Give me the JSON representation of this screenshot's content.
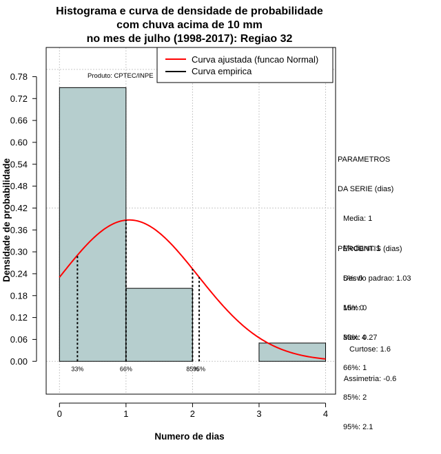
{
  "chart_data": {
    "type": "histogram",
    "title_lines": [
      "Histograma e curva de densidade de probabilidade",
      "com chuva acima de 10 mm",
      "no mes de julho (1998-2017): Regiao 32"
    ],
    "xlabel": "Numero de dias",
    "ylabel": "Densidade de probabilidade",
    "xlim": [
      -0.2,
      4.15
    ],
    "ylim": [
      -0.09,
      0.86
    ],
    "x_ticks": [
      0,
      1,
      2,
      3,
      4
    ],
    "y_ticks": [
      0.0,
      0.06,
      0.12,
      0.18,
      0.24,
      0.3,
      0.36,
      0.42,
      0.48,
      0.54,
      0.6,
      0.66,
      0.72,
      0.78
    ],
    "y_tick_labels": [
      "0.00",
      "0.06",
      "0.12",
      "0.18",
      "0.24",
      "0.30",
      "0.36",
      "0.42",
      "0.48",
      "0.54",
      "0.60",
      "0.66",
      "0.72",
      "0.78"
    ],
    "grid": true,
    "bars": [
      {
        "x0": 0,
        "x1": 1,
        "density": 0.75
      },
      {
        "x0": 1,
        "x1": 2,
        "density": 0.2
      },
      {
        "x0": 2,
        "x1": 3,
        "density": 0.0
      },
      {
        "x0": 3,
        "x1": 4,
        "density": 0.05
      }
    ],
    "bar_color": "#b6cece",
    "normal_curve": {
      "mean": 1.05,
      "sd": 1.03,
      "x_from": 0,
      "x_to": 4,
      "color": "#ff0000"
    },
    "percentile_lines": [
      {
        "label": "33%",
        "x": 0.27
      },
      {
        "label": "66%",
        "x": 1
      },
      {
        "label": "85%",
        "x": 2
      },
      {
        "label": "95%",
        "x": 2.1
      }
    ],
    "legend": {
      "position": "top-right",
      "entries": [
        {
          "label": "Curva ajustada (funcao Normal)",
          "color": "#ff0000"
        },
        {
          "label": "Curva empirica",
          "color": "#000000"
        }
      ]
    },
    "product_label": "Produto: CPTEC/INPE"
  },
  "params": {
    "title1": "PARAMETROS",
    "title2": "DA SERIE (dias)",
    "lines": [
      "Media: 1",
      "Mediana: 1",
      "Desvio padrao: 1.03",
      "Min: 0",
      "Max: 4"
    ]
  },
  "percentis": {
    "title": "PERCENTIS (dias)",
    "lines": [
      "5%: 0",
      "15%: 0",
      "33%: 0.27",
      "66%: 1",
      "85%: 2",
      "95%: 2.1"
    ]
  },
  "shape": {
    "curtose": "Curtose: 1.6",
    "assimetria": "Assimetria: -0.6"
  }
}
